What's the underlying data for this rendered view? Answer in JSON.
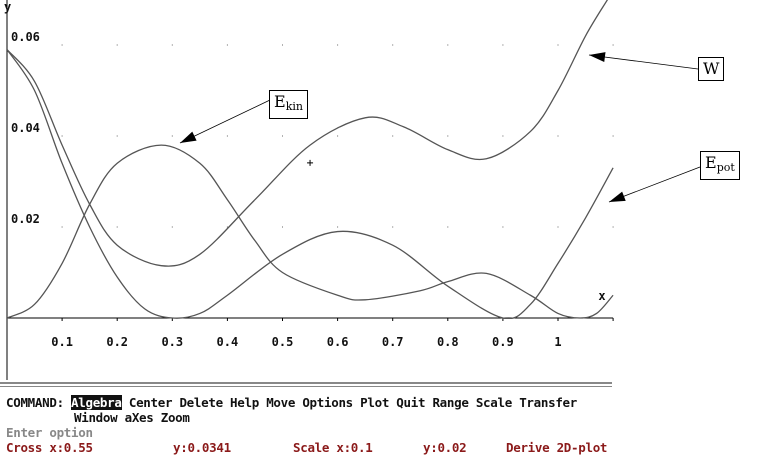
{
  "plot": {
    "x_axis_label": "x",
    "y_axis_label": "y",
    "x_ticks": [
      "0.1",
      "0.2",
      "0.3",
      "0.4",
      "0.5",
      "0.6",
      "0.7",
      "0.8",
      "0.9",
      "1"
    ],
    "y_ticks": [
      "0.02",
      "0.04",
      "0.06"
    ],
    "curve_color": "#555555",
    "annotations": {
      "w": "W",
      "ekin_base": "E",
      "ekin_sub": "kin",
      "epot_base": "E",
      "epot_sub": "pot"
    }
  },
  "chart_data": {
    "type": "line",
    "xlim": [
      0,
      1.1
    ],
    "ylim": [
      0,
      0.07
    ],
    "x_tick_values": [
      0.1,
      0.2,
      0.3,
      0.4,
      0.5,
      0.6,
      0.7,
      0.8,
      0.9,
      1.0
    ],
    "y_tick_values": [
      0.02,
      0.04,
      0.06
    ],
    "grid": "dots",
    "cross": [
      0.55,
      0.0341
    ],
    "series": [
      {
        "name": "W",
        "points": [
          [
            0,
            0.059
          ],
          [
            0.05,
            0.052
          ],
          [
            0.1,
            0.038
          ],
          [
            0.15,
            0.025
          ],
          [
            0.2,
            0.016
          ],
          [
            0.28,
            0.0115
          ],
          [
            0.35,
            0.014
          ],
          [
            0.45,
            0.026
          ],
          [
            0.55,
            0.038
          ],
          [
            0.65,
            0.044
          ],
          [
            0.72,
            0.042
          ],
          [
            0.8,
            0.037
          ],
          [
            0.87,
            0.035
          ],
          [
            0.95,
            0.041
          ],
          [
            1.0,
            0.05
          ],
          [
            1.05,
            0.062
          ],
          [
            1.09,
            0.07
          ]
        ]
      },
      {
        "name": "Ekin",
        "points": [
          [
            0,
            0
          ],
          [
            0.05,
            0.003
          ],
          [
            0.1,
            0.012
          ],
          [
            0.15,
            0.025
          ],
          [
            0.2,
            0.034
          ],
          [
            0.28,
            0.038
          ],
          [
            0.35,
            0.034
          ],
          [
            0.4,
            0.026
          ],
          [
            0.45,
            0.017
          ],
          [
            0.5,
            0.01
          ],
          [
            0.6,
            0.005
          ],
          [
            0.65,
            0.004
          ],
          [
            0.75,
            0.006
          ],
          [
            0.8,
            0.008
          ],
          [
            0.87,
            0.0098
          ],
          [
            0.95,
            0.005
          ],
          [
            1.0,
            0.001
          ],
          [
            1.04,
            0
          ],
          [
            1.07,
            0.001
          ],
          [
            1.1,
            0.005
          ]
        ]
      },
      {
        "name": "Epot",
        "points": [
          [
            0,
            0.059
          ],
          [
            0.05,
            0.05
          ],
          [
            0.1,
            0.034
          ],
          [
            0.15,
            0.02
          ],
          [
            0.2,
            0.009
          ],
          [
            0.25,
            0.002
          ],
          [
            0.3,
            0
          ],
          [
            0.35,
            0.001
          ],
          [
            0.4,
            0.005
          ],
          [
            0.5,
            0.014
          ],
          [
            0.6,
            0.019
          ],
          [
            0.7,
            0.016
          ],
          [
            0.8,
            0.007
          ],
          [
            0.9,
            0
          ],
          [
            0.95,
            0.003
          ],
          [
            1.0,
            0.012
          ],
          [
            1.05,
            0.022
          ],
          [
            1.1,
            0.033
          ]
        ]
      }
    ]
  },
  "menu": {
    "prefix": "COMMAND: ",
    "items": [
      "Algebra",
      "Center",
      "Delete",
      "Help",
      "Move",
      "Options",
      "Plot",
      "Quit",
      "Range",
      "Scale",
      "Transfer",
      "Window",
      "aXes",
      "Zoom"
    ]
  },
  "prompt": "Enter option",
  "status": {
    "cross_x": "Cross x:0.55",
    "cross_y": "y:0.0341",
    "scale_x": "Scale x:0.1",
    "scale_y": "y:0.02",
    "mode": "Derive 2D-plot"
  }
}
